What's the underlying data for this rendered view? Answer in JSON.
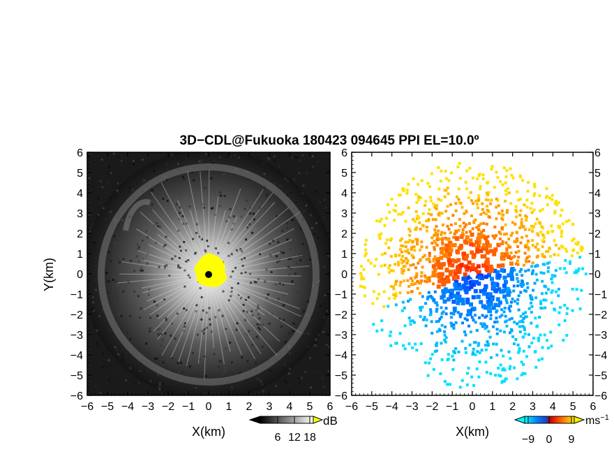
{
  "title": "3D−CDL@Fukuoka 180423 094645 PPI EL=10.0º",
  "chart_data": [
    {
      "type": "heatmap",
      "panel": "left",
      "quantity": "reflectivity (grayscale)",
      "xlabel": "X(km)",
      "ylabel": "Y(km)",
      "xlim": [
        -6,
        6
      ],
      "ylim": [
        -6,
        6
      ],
      "xticks": [
        "−6",
        "−5",
        "−4",
        "−3",
        "−2",
        "−1",
        "0",
        "1",
        "2",
        "3",
        "4",
        "5",
        "6"
      ],
      "yticks": [
        "6",
        "5",
        "4",
        "3",
        "2",
        "1",
        "0",
        "−1",
        "−2",
        "−3",
        "−4",
        "−5",
        "−6"
      ],
      "colorbar": {
        "unit": "dB",
        "ticks": [
          "6",
          "12",
          "18"
        ],
        "colors": [
          "#000000",
          "#ffffff",
          "#ffff00"
        ]
      },
      "features": [
        {
          "name": "saturated core",
          "value": "above 18 dB",
          "color": "#ffff00",
          "center": [
            0,
            0
          ],
          "radius_km": 0.6
        },
        {
          "name": "blind zone",
          "color": "#000000",
          "center": [
            0,
            0
          ],
          "radius_km": 0.17
        },
        {
          "name": "bright echo ring",
          "radius_km": 5.3
        }
      ]
    },
    {
      "type": "heatmap",
      "panel": "right",
      "quantity": "Doppler velocity",
      "xlabel": "X(km)",
      "ylabel": "",
      "xlim": [
        -6,
        6
      ],
      "ylim": [
        -6,
        6
      ],
      "xticks": [
        "−6",
        "−5",
        "−4",
        "−3",
        "−2",
        "−1",
        "0",
        "1",
        "2",
        "3",
        "4",
        "5",
        "6"
      ],
      "yticks": [
        "6",
        "5",
        "4",
        "3",
        "2",
        "1",
        "0",
        "−1",
        "−2",
        "−3",
        "−4",
        "−5",
        "−6"
      ],
      "colorbar": {
        "unit": "ms",
        "unit_exponent": "−1",
        "ticks": [
          "−9",
          "0",
          "9"
        ],
        "colors": [
          "#00ffff",
          "#0050ff",
          "#2040c0",
          "#c00000",
          "#ff4000",
          "#ff9000",
          "#ffee00"
        ]
      },
      "features": [
        {
          "name": "receding (positive) region",
          "sector": "north-west to east",
          "colors": [
            "#ff3000",
            "#ff9000",
            "#ffd000"
          ]
        },
        {
          "name": "approaching (negative) region",
          "sector": "south-east to south-west",
          "colors": [
            "#0050ff",
            "#00a0ff",
            "#00e0ff"
          ]
        }
      ]
    }
  ]
}
